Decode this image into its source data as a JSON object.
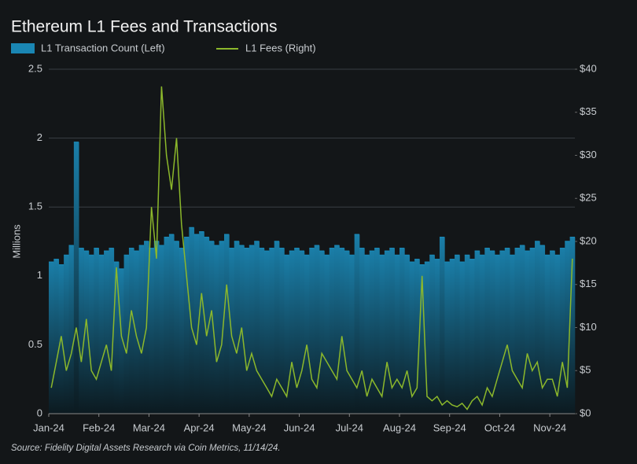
{
  "chart_data": {
    "type": "bar-line",
    "title": "Ethereum L1 Fees and Transactions",
    "source": "Source: Fidelity Digital Assets Research via Coin Metrics, 11/14/24.",
    "ylabel": "Millions",
    "categories": [
      "Jan-24",
      null,
      null,
      null,
      null,
      null,
      null,
      null,
      null,
      null,
      "Feb-24",
      null,
      null,
      null,
      null,
      null,
      null,
      null,
      null,
      null,
      "Mar-24",
      null,
      null,
      null,
      null,
      null,
      null,
      null,
      null,
      null,
      "Apr-24",
      null,
      null,
      null,
      null,
      null,
      null,
      null,
      null,
      null,
      "May-24",
      null,
      null,
      null,
      null,
      null,
      null,
      null,
      null,
      null,
      "Jun-24",
      null,
      null,
      null,
      null,
      null,
      null,
      null,
      null,
      null,
      "Jul-24",
      null,
      null,
      null,
      null,
      null,
      null,
      null,
      null,
      null,
      "Aug-24",
      null,
      null,
      null,
      null,
      null,
      null,
      null,
      null,
      null,
      "Sep-24",
      null,
      null,
      null,
      null,
      null,
      null,
      null,
      null,
      null,
      "Oct-24",
      null,
      null,
      null,
      null,
      null,
      null,
      null,
      null,
      null,
      "Nov-24",
      null,
      null,
      null,
      null
    ],
    "series": [
      {
        "name": "L1 Transaction Count (Left)",
        "color": "#1a86b3",
        "axis": "y",
        "values": [
          1.1,
          1.12,
          1.08,
          1.15,
          1.22,
          1.97,
          1.2,
          1.18,
          1.15,
          1.2,
          1.15,
          1.18,
          1.2,
          1.1,
          1.05,
          1.15,
          1.2,
          1.18,
          1.22,
          1.25,
          1.2,
          1.25,
          1.22,
          1.28,
          1.3,
          1.25,
          1.2,
          1.28,
          1.35,
          1.3,
          1.32,
          1.28,
          1.25,
          1.22,
          1.25,
          1.3,
          1.2,
          1.25,
          1.22,
          1.2,
          1.22,
          1.25,
          1.2,
          1.18,
          1.2,
          1.25,
          1.2,
          1.15,
          1.18,
          1.2,
          1.18,
          1.15,
          1.2,
          1.22,
          1.18,
          1.15,
          1.2,
          1.22,
          1.2,
          1.18,
          1.15,
          1.3,
          1.2,
          1.15,
          1.18,
          1.2,
          1.15,
          1.18,
          1.2,
          1.15,
          1.2,
          1.15,
          1.1,
          1.12,
          1.08,
          1.1,
          1.15,
          1.12,
          1.28,
          1.1,
          1.12,
          1.15,
          1.1,
          1.15,
          1.12,
          1.18,
          1.15,
          1.2,
          1.18,
          1.15,
          1.18,
          1.2,
          1.15,
          1.2,
          1.22,
          1.18,
          1.2,
          1.25,
          1.22,
          1.15,
          1.18,
          1.15,
          1.2,
          1.25,
          1.28
        ]
      },
      {
        "name": "L1 Fees (Right)",
        "color": "#8cb82b",
        "axis": "y2",
        "values": [
          3,
          6,
          9,
          5,
          7,
          10,
          6,
          11,
          5,
          4,
          6,
          8,
          5,
          17,
          9,
          7,
          12,
          9,
          7,
          10,
          24,
          18,
          38,
          30,
          26,
          32,
          22,
          16,
          10,
          8,
          14,
          9,
          12,
          6,
          8,
          15,
          9,
          7,
          10,
          5,
          7,
          5,
          4,
          3,
          2,
          4,
          3,
          2,
          6,
          3,
          5,
          8,
          4,
          3,
          7,
          6,
          5,
          4,
          9,
          5,
          4,
          3,
          5,
          2,
          4,
          3,
          2,
          6,
          3,
          4,
          3,
          5,
          2,
          3,
          16,
          2,
          1.5,
          2,
          1,
          1.5,
          1,
          0.8,
          1.2,
          0.5,
          1.5,
          2,
          1,
          3,
          2,
          4,
          6,
          8,
          5,
          4,
          3,
          7,
          5,
          6,
          3,
          4,
          4,
          2,
          6,
          3,
          18
        ]
      }
    ],
    "ylim": [
      0,
      2.5
    ],
    "yticks": [
      0,
      0.5,
      1,
      1.5,
      2,
      2.5
    ],
    "y2lim": [
      0,
      40
    ],
    "y2ticks": [
      {
        "value": 0,
        "label": "$0"
      },
      {
        "value": 5,
        "label": "$5"
      },
      {
        "value": 10,
        "label": "$10"
      },
      {
        "value": 15,
        "label": "$15"
      },
      {
        "value": 20,
        "label": "$20"
      },
      {
        "value": 25,
        "label": "$25"
      },
      {
        "value": 30,
        "label": "$30"
      },
      {
        "value": 35,
        "label": "$35"
      },
      {
        "value": 40,
        "label": "$40"
      }
    ],
    "grid": true
  }
}
